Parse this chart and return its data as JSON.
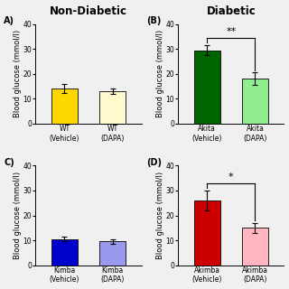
{
  "panels": {
    "A": {
      "label": "A)",
      "categories": [
        "WT\n(Vehicle)",
        "WT\n(DAPA)"
      ],
      "values": [
        14.0,
        13.0
      ],
      "errors": [
        1.8,
        1.2
      ],
      "colors": [
        "#FFD700",
        "#FFFACD"
      ],
      "ylim": [
        0,
        40
      ],
      "yticks": [
        0,
        10,
        20,
        30,
        40
      ],
      "ylabel": "Blood glucose (mmol/l)",
      "significance": null
    },
    "B": {
      "label": "(B)",
      "categories": [
        "Akita\n(Vehicle)",
        "Akita\n(DAPA)"
      ],
      "values": [
        29.5,
        18.0
      ],
      "errors": [
        2.0,
        2.5
      ],
      "colors": [
        "#006400",
        "#90EE90"
      ],
      "ylim": [
        0,
        40
      ],
      "yticks": [
        0,
        10,
        20,
        30,
        40
      ],
      "ylabel": "Blood glucose (mmol/l)",
      "significance": "**"
    },
    "C": {
      "label": "C)",
      "categories": [
        "Kimba\n(Vehicle)",
        "Kimba\n(DAPA)"
      ],
      "values": [
        10.5,
        9.5
      ],
      "errors": [
        0.8,
        0.9
      ],
      "colors": [
        "#0000CD",
        "#9999EE"
      ],
      "ylim": [
        0,
        40
      ],
      "yticks": [
        0,
        10,
        20,
        30,
        40
      ],
      "ylabel": "Blood glucose (mmol/l)",
      "significance": null
    },
    "D": {
      "label": "(D)",
      "categories": [
        "Akimba\n(Vehicle)",
        "Akimba\n(DAPA)"
      ],
      "values": [
        26.0,
        15.0
      ],
      "errors": [
        4.0,
        2.0
      ],
      "colors": [
        "#CC0000",
        "#FFB6C1"
      ],
      "ylim": [
        0,
        40
      ],
      "yticks": [
        0,
        10,
        20,
        30,
        40
      ],
      "ylabel": "Blood glucose (mmol/l)",
      "significance": "*"
    }
  },
  "col_titles": {
    "left": "Non-Diabetic",
    "right": "Diabetic"
  },
  "bar_width": 0.55,
  "title_fontsize": 8.5,
  "label_fontsize": 6.5,
  "tick_fontsize": 5.5,
  "ylabel_fontsize": 6.0,
  "fig_bg": "#f0f0f0"
}
